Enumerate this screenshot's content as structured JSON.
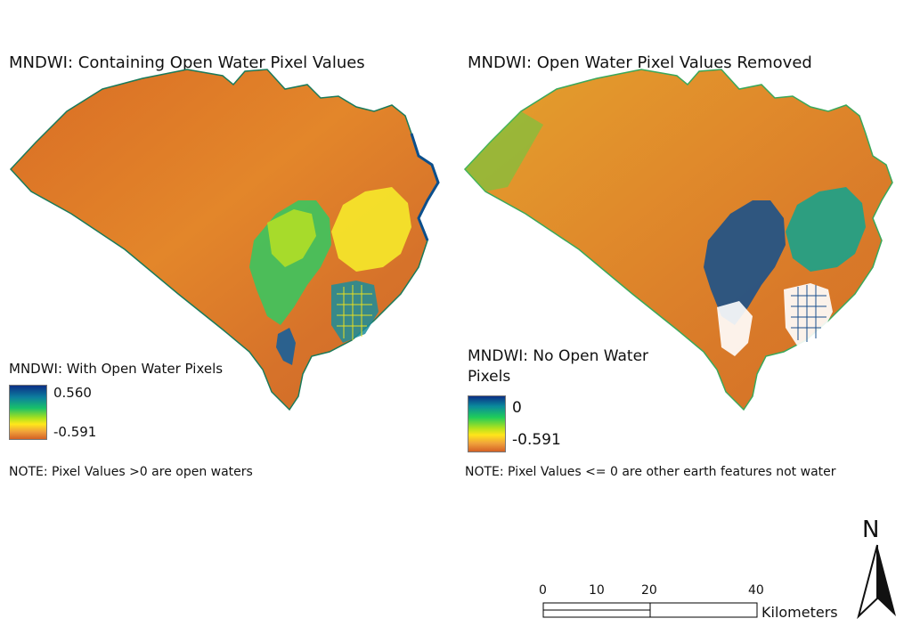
{
  "panels": [
    {
      "title": "MNDWI: Containing Open Water Pixel Values",
      "legend_title": "MNDWI: With Open Water Pixels",
      "legend_max": "0.560",
      "legend_min": "-0.591",
      "note": "NOTE: Pixel Values >0 are open waters"
    },
    {
      "title": "MNDWI: Open Water Pixel Values Removed",
      "legend_title_line1": "MNDWI: No Open Water",
      "legend_title_line2": "Pixels",
      "legend_max": "0",
      "legend_min": "-0.591",
      "note": "NOTE: Pixel Values <= 0 are other earth features not water"
    }
  ],
  "scale_bar": {
    "ticks": [
      "0",
      "10",
      "20",
      "40"
    ],
    "unit": "Kilometers"
  },
  "north_arrow": {
    "label": "N"
  },
  "colors": {
    "water_high": "#0b2f86",
    "mid_green": "#18c06a",
    "yellow": "#ffe81a",
    "orange": "#d46125"
  }
}
